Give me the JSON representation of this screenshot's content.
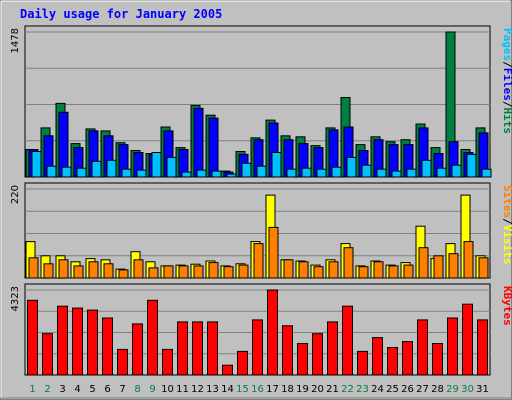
{
  "chart_data": {
    "type": "bar",
    "title": "Daily usage for January 2005",
    "x": [
      "1",
      "2",
      "3",
      "4",
      "5",
      "6",
      "7",
      "8",
      "9",
      "10",
      "11",
      "12",
      "13",
      "14",
      "15",
      "16",
      "17",
      "18",
      "19",
      "20",
      "21",
      "22",
      "23",
      "24",
      "25",
      "26",
      "27",
      "28",
      "29",
      "30",
      "31"
    ],
    "weekend_days": [
      "1",
      "2",
      "8",
      "9",
      "15",
      "16",
      "22",
      "23",
      "29",
      "30"
    ],
    "panels": [
      {
        "id": "hits-files-pages",
        "max_label": "1478",
        "ymax": 1478,
        "legend": [
          {
            "text": "Pages",
            "color": "#00c0ff"
          },
          {
            "text": "/",
            "color": "#000000"
          },
          {
            "text": "Files",
            "color": "#0000ff"
          },
          {
            "text": "/",
            "color": "#000000"
          },
          {
            "text": "Hits",
            "color": "#008040"
          }
        ],
        "series": [
          {
            "name": "Hits",
            "color": "#008040",
            "values": [
              280,
              500,
              750,
              340,
              490,
              470,
              350,
              270,
              240,
              510,
              300,
              730,
              630,
              60,
              260,
              400,
              580,
              420,
              410,
              320,
              500,
              810,
              330,
              410,
              360,
              380,
              540,
              300,
              1478,
              280,
              500
            ]
          },
          {
            "name": "Files",
            "color": "#0000ff",
            "values": [
              280,
              420,
              660,
              300,
              470,
              420,
              330,
              250,
              230,
              470,
              280,
              700,
              600,
              50,
              230,
              380,
              550,
              380,
              340,
              300,
              480,
              510,
              270,
              380,
              330,
              330,
              500,
              240,
              360,
              250,
              450
            ]
          },
          {
            "name": "Pages",
            "color": "#00c0ff",
            "values": [
              260,
              110,
              100,
              90,
              160,
              170,
              80,
              70,
              250,
              200,
              50,
              70,
              60,
              30,
              140,
              110,
              250,
              80,
              90,
              80,
              100,
              200,
              120,
              80,
              60,
              80,
              170,
              90,
              120,
              230,
              80
            ]
          }
        ]
      },
      {
        "id": "visits-sites",
        "max_label": "220",
        "ymax": 220,
        "legend": [
          {
            "text": "Sites",
            "color": "#ff8000"
          },
          {
            "text": "/",
            "color": "#000000"
          },
          {
            "text": "Visits",
            "color": "#ffff00"
          }
        ],
        "series": [
          {
            "name": "Visits",
            "color": "#ffff00",
            "values": [
              90,
              55,
              55,
              40,
              48,
              45,
              22,
              65,
              40,
              30,
              32,
              34,
              42,
              30,
              35,
              90,
              205,
              45,
              42,
              32,
              45,
              85,
              30,
              42,
              32,
              38,
              128,
              48,
              85,
              205,
              55
            ]
          },
          {
            "name": "Sites",
            "color": "#ff8000",
            "values": [
              50,
              35,
              45,
              30,
              40,
              35,
              20,
              45,
              25,
              30,
              30,
              30,
              38,
              28,
              32,
              85,
              125,
              45,
              40,
              28,
              40,
              75,
              28,
              40,
              30,
              32,
              75,
              55,
              60,
              90,
              50
            ]
          }
        ]
      },
      {
        "id": "kbytes",
        "max_label": "4323",
        "ymax": 4323,
        "legend": [
          {
            "text": "KBytes",
            "color": "#ff0000"
          }
        ],
        "series": [
          {
            "name": "KBytes",
            "color": "#ff0000",
            "values": [
              3800,
              2100,
              3500,
              3400,
              3300,
              2900,
              1300,
              2600,
              3800,
              1300,
              2700,
              2700,
              2700,
              500,
              1200,
              2800,
              4323,
              2500,
              1600,
              2100,
              2700,
              3500,
              1200,
              1900,
              1400,
              1700,
              2800,
              1600,
              2900,
              3600,
              2800
            ]
          }
        ]
      }
    ]
  }
}
